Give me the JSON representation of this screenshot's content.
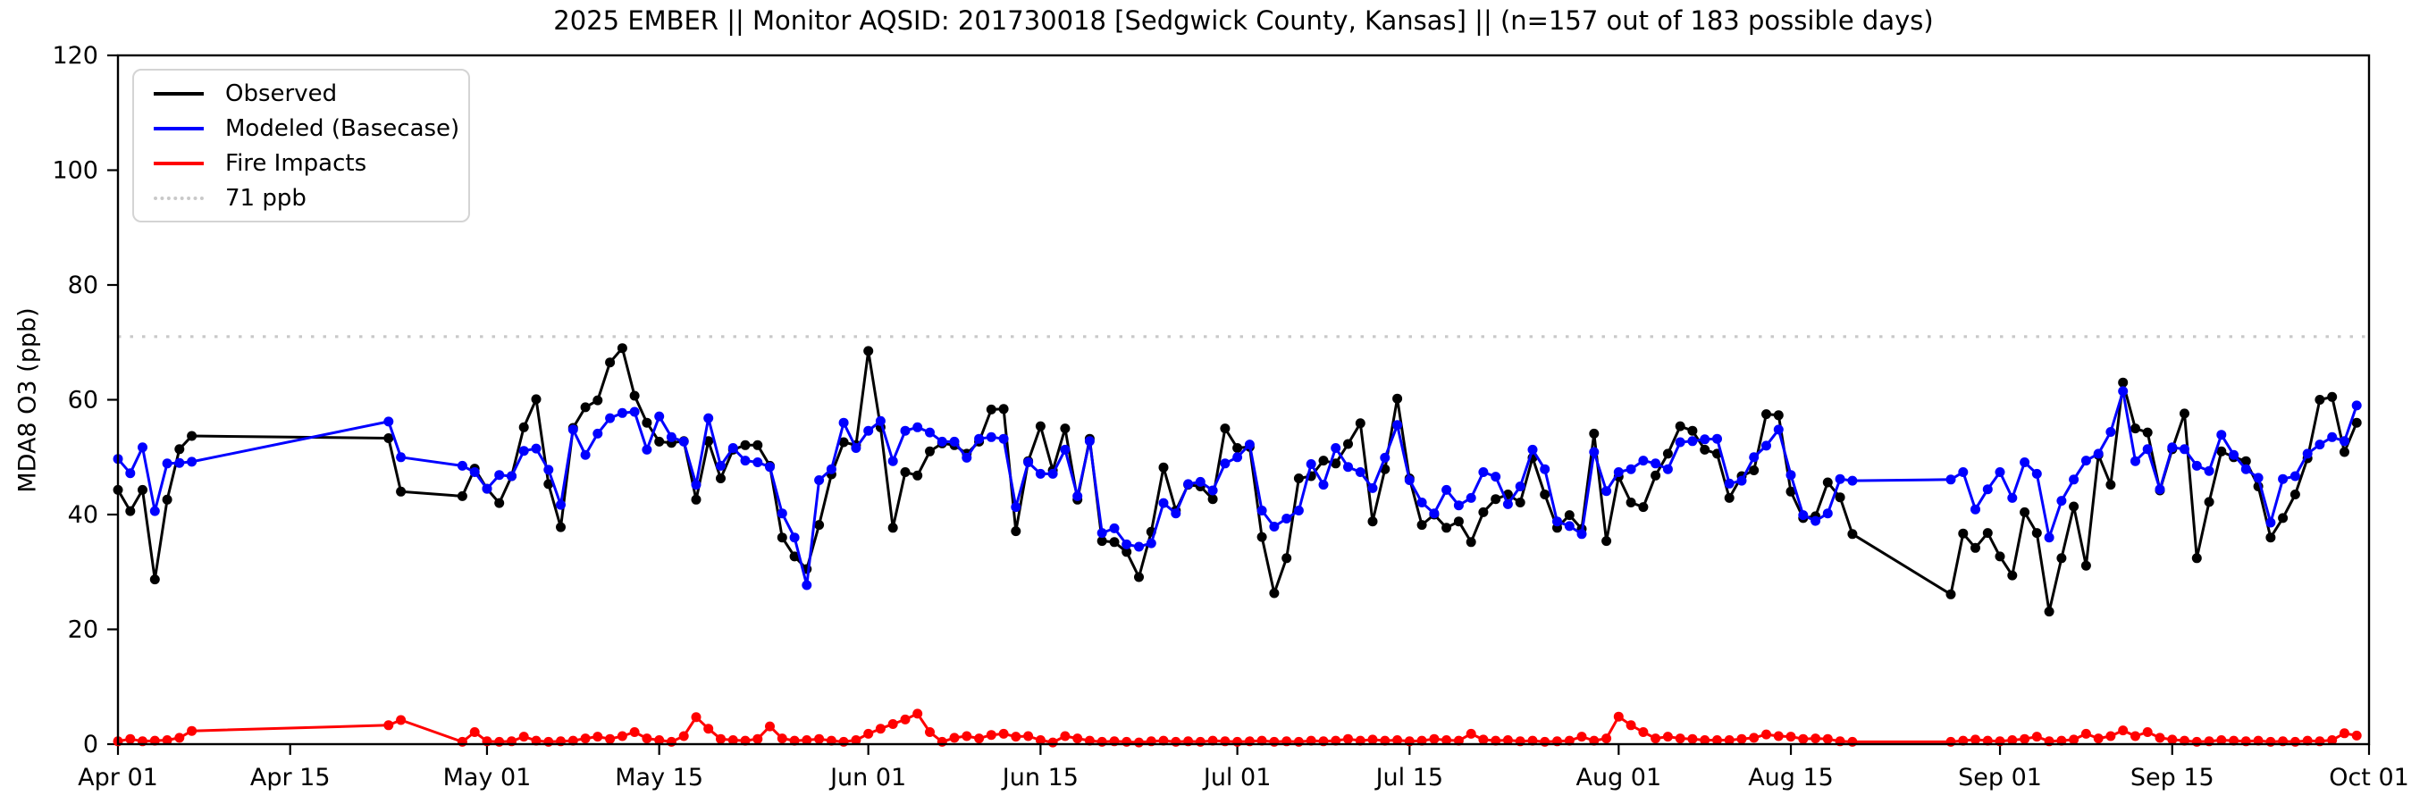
{
  "chart_data": {
    "type": "line",
    "title": "2025 EMBER || Monitor AQSID: 201730018 [Sedgwick County, Kansas] || (n=157 out of 183 possible days)",
    "ylabel": "MDA8 O3 (ppb)",
    "ylim": [
      0,
      120
    ],
    "grid": false,
    "legend_position": "upper left",
    "y_axis": {
      "ticks": [
        0,
        20,
        40,
        60,
        80,
        100,
        120
      ]
    },
    "x_axis": {
      "start_date": "Apr 01",
      "end_date": "Oct 01",
      "days": 183,
      "ticks": [
        {
          "label": "Apr 01",
          "day": 0
        },
        {
          "label": "Apr 15",
          "day": 14
        },
        {
          "label": "May 01",
          "day": 30
        },
        {
          "label": "May 15",
          "day": 44
        },
        {
          "label": "Jun 01",
          "day": 61
        },
        {
          "label": "Jun 15",
          "day": 75
        },
        {
          "label": "Jul 01",
          "day": 91
        },
        {
          "label": "Jul 15",
          "day": 105
        },
        {
          "label": "Aug 01",
          "day": 122
        },
        {
          "label": "Aug 15",
          "day": 136
        },
        {
          "label": "Sep 01",
          "day": 153
        },
        {
          "label": "Sep 15",
          "day": 167
        },
        {
          "label": "Oct 01",
          "day": 183
        }
      ]
    },
    "threshold": {
      "label": "71 ppb",
      "value": 71,
      "color": "#c9c9c9"
    },
    "series": [
      {
        "id": "observed",
        "name": "Observed",
        "color": "#000000",
        "values": [
          44.3,
          40.6,
          44.3,
          28.7,
          42.6,
          51.4,
          53.7,
          null,
          null,
          null,
          null,
          null,
          null,
          null,
          null,
          null,
          null,
          null,
          null,
          null,
          null,
          null,
          53.3,
          44.0,
          null,
          null,
          null,
          null,
          43.2,
          48.0,
          44.5,
          42.0,
          46.7,
          55.2,
          60.1,
          45.3,
          37.8,
          55.1,
          58.7,
          59.9,
          66.5,
          69.0,
          60.7,
          56.0,
          52.7,
          52.5,
          52.8,
          42.6,
          52.8,
          46.3,
          51.3,
          52.1,
          52.1,
          48.5,
          36.0,
          32.7,
          30.5,
          38.2,
          47.0,
          52.6,
          52.1,
          68.5,
          55.2,
          37.7,
          47.4,
          46.8,
          51.0,
          52.4,
          52.1,
          50.6,
          52.7,
          58.3,
          58.4,
          37.1,
          49.3,
          55.4,
          47.7,
          55.0,
          42.6,
          53.2,
          35.4,
          35.2,
          33.5,
          29.1,
          37.0,
          48.2,
          40.7,
          45.2,
          44.9,
          42.7,
          55.0,
          51.6,
          51.8,
          36.1,
          26.3,
          32.4,
          46.3,
          46.7,
          49.4,
          48.9,
          52.3,
          55.9,
          38.8,
          47.9,
          60.2,
          46.3,
          38.2,
          40.0,
          37.7,
          38.8,
          35.2,
          40.4,
          42.7,
          43.5,
          42.1,
          49.9,
          43.5,
          37.7,
          39.9,
          37.5,
          54.1,
          35.4,
          46.6,
          42.1,
          41.3,
          46.8,
          50.6,
          55.4,
          54.6,
          51.3,
          50.6,
          42.9,
          46.7,
          47.7,
          57.5,
          57.3,
          44.0,
          39.4,
          39.7,
          45.6,
          43.0,
          36.6,
          null,
          null,
          null,
          null,
          null,
          null,
          null,
          26.1,
          36.7,
          34.2,
          36.8,
          32.7,
          29.4,
          40.4,
          36.8,
          23.1,
          32.4,
          41.4,
          31.1,
          50.4,
          45.2,
          63.0,
          55.0,
          54.3,
          44.2,
          51.4,
          57.6,
          32.4,
          42.2,
          51.0,
          50.0,
          49.3,
          44.9,
          36.0,
          39.4,
          43.5,
          49.8,
          60.0,
          60.5,
          50.9,
          56.0
        ]
      },
      {
        "id": "modeled",
        "name": "Modeled (Basecase)",
        "color": "#0000ff",
        "values": [
          49.7,
          47.2,
          51.7,
          40.6,
          48.9,
          49.0,
          49.2,
          null,
          null,
          null,
          null,
          null,
          null,
          null,
          null,
          null,
          null,
          null,
          null,
          null,
          null,
          null,
          56.2,
          50.0,
          null,
          null,
          null,
          null,
          48.5,
          47.4,
          44.5,
          46.9,
          46.7,
          51.1,
          51.5,
          47.8,
          41.7,
          54.8,
          50.4,
          54.1,
          56.8,
          57.7,
          57.9,
          51.3,
          57.1,
          53.5,
          52.7,
          45.2,
          56.8,
          48.5,
          51.6,
          49.4,
          49.1,
          48.3,
          40.2,
          36.0,
          27.7,
          46.0,
          47.9,
          56.0,
          51.6,
          54.6,
          56.3,
          49.3,
          54.6,
          55.2,
          54.3,
          52.7,
          52.7,
          49.9,
          53.2,
          53.5,
          53.2,
          41.3,
          49.1,
          47.1,
          47.1,
          51.3,
          43.2,
          52.8,
          36.8,
          37.6,
          34.8,
          34.4,
          35.0,
          42.0,
          40.2,
          45.3,
          45.7,
          44.2,
          48.9,
          50.0,
          52.2,
          40.7,
          37.9,
          39.3,
          40.7,
          48.8,
          45.2,
          51.6,
          48.3,
          47.4,
          44.6,
          49.9,
          55.6,
          46.0,
          42.1,
          40.2,
          44.3,
          41.6,
          42.9,
          47.4,
          46.6,
          41.8,
          44.9,
          51.3,
          47.9,
          38.8,
          38.0,
          36.6,
          50.9,
          44.1,
          47.4,
          47.9,
          49.4,
          48.9,
          47.9,
          52.6,
          52.8,
          53.1,
          53.2,
          45.4,
          45.9,
          50.0,
          52.0,
          54.8,
          46.9,
          39.9,
          38.9,
          40.2,
          46.2,
          45.9,
          null,
          null,
          null,
          null,
          null,
          null,
          null,
          46.1,
          47.4,
          40.9,
          44.4,
          47.4,
          42.9,
          49.1,
          47.1,
          36.0,
          42.4,
          46.1,
          49.4,
          50.6,
          54.4,
          61.5,
          49.3,
          51.4,
          44.4,
          51.7,
          51.4,
          48.5,
          47.6,
          53.9,
          50.4,
          47.9,
          46.4,
          38.6,
          46.2,
          46.7,
          50.6,
          52.2,
          53.5,
          52.8,
          59.0
        ]
      },
      {
        "id": "fire",
        "name": "Fire Impacts",
        "color": "#ff0000",
        "values": [
          0.5,
          0.9,
          0.5,
          0.6,
          0.7,
          1.1,
          2.3,
          null,
          null,
          null,
          null,
          null,
          null,
          null,
          null,
          null,
          null,
          null,
          null,
          null,
          null,
          null,
          3.3,
          4.2,
          null,
          null,
          null,
          null,
          0.4,
          2.1,
          0.5,
          0.4,
          0.5,
          1.3,
          0.6,
          0.4,
          0.5,
          0.6,
          1.0,
          1.3,
          0.9,
          1.4,
          2.1,
          1.0,
          0.7,
          0.4,
          1.4,
          4.7,
          2.7,
          0.9,
          0.7,
          0.6,
          0.9,
          3.1,
          1.0,
          0.6,
          0.7,
          0.9,
          0.6,
          0.4,
          0.7,
          1.8,
          2.7,
          3.5,
          4.3,
          5.3,
          2.1,
          0.4,
          1.1,
          1.4,
          1.0,
          1.6,
          1.8,
          1.3,
          1.4,
          0.7,
          0.3,
          1.4,
          1.0,
          0.6,
          0.4,
          0.5,
          0.4,
          0.3,
          0.5,
          0.6,
          0.4,
          0.5,
          0.4,
          0.6,
          0.5,
          0.4,
          0.5,
          0.6,
          0.4,
          0.5,
          0.4,
          0.6,
          0.5,
          0.6,
          0.9,
          0.6,
          0.8,
          0.6,
          0.7,
          0.5,
          0.6,
          0.9,
          0.7,
          0.6,
          1.8,
          0.8,
          0.6,
          0.7,
          0.5,
          0.6,
          0.4,
          0.5,
          0.6,
          1.3,
          0.6,
          1.0,
          4.8,
          3.3,
          2.1,
          1.0,
          1.3,
          1.0,
          0.9,
          0.7,
          0.7,
          0.7,
          0.9,
          1.1,
          1.7,
          1.4,
          1.3,
          0.9,
          1.0,
          0.9,
          0.5,
          0.4,
          null,
          null,
          null,
          null,
          null,
          null,
          null,
          0.4,
          0.6,
          0.8,
          0.6,
          0.5,
          0.7,
          0.9,
          1.3,
          0.5,
          0.6,
          0.8,
          1.8,
          1.0,
          1.4,
          2.4,
          1.4,
          2.1,
          1.1,
          0.8,
          0.6,
          0.4,
          0.5,
          0.7,
          0.6,
          0.5,
          0.6,
          0.4,
          0.5,
          0.4,
          0.6,
          0.5,
          0.7,
          1.9,
          1.5
        ]
      }
    ]
  }
}
